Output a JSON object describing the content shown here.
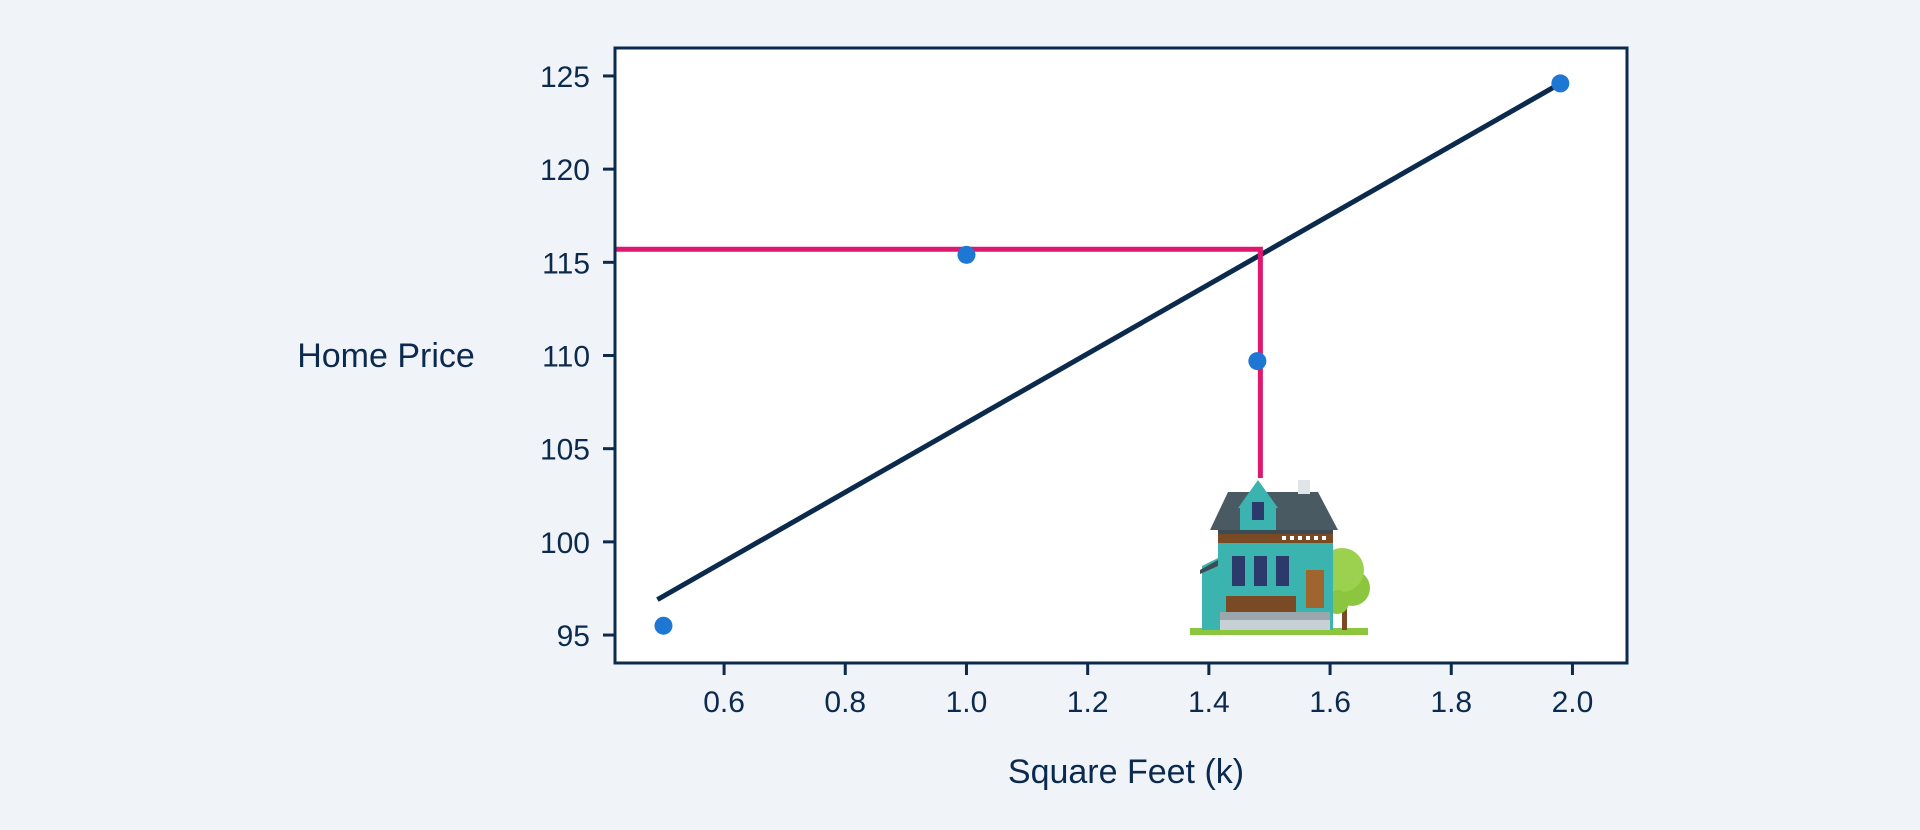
{
  "chart_data": {
    "type": "scatter",
    "xlabel": "Square Feet (k)",
    "ylabel": "Home Price",
    "xlim": [
      0.42,
      2.09
    ],
    "ylim": [
      93.5,
      126.5
    ],
    "x_ticks": [
      "0.6",
      "0.8",
      "1.0",
      "1.2",
      "1.4",
      "1.6",
      "1.8",
      "2.0"
    ],
    "y_ticks": [
      "95",
      "100",
      "105",
      "110",
      "115",
      "120",
      "125"
    ],
    "grid": false,
    "points": [
      {
        "x": 0.5,
        "y": 95.5
      },
      {
        "x": 1.0,
        "y": 115.4
      },
      {
        "x": 1.48,
        "y": 109.7
      },
      {
        "x": 1.98,
        "y": 124.6
      }
    ],
    "trend_line": {
      "x": [
        0.49,
        1.98
      ],
      "y": [
        96.9,
        124.6
      ]
    },
    "prediction": {
      "x": 1.485,
      "y": 115.7
    },
    "colors": {
      "points": "#1f77d4",
      "trend_line": "#0b2a4e",
      "prediction_line": "#e0176e",
      "frame": "#0b2a4e",
      "plot_bg": "#ffffff",
      "page_bg": "#f0f4f9"
    },
    "icon": "house-icon"
  }
}
